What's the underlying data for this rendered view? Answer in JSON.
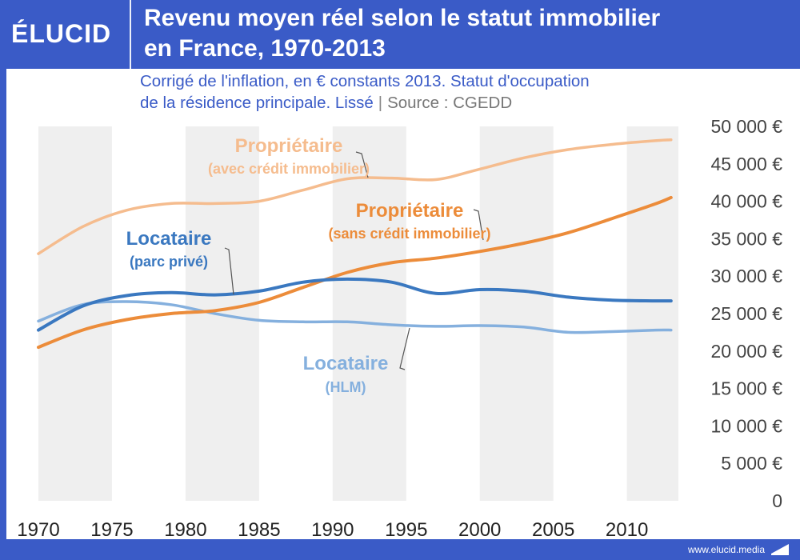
{
  "brand": {
    "logo": "ÉLUCID",
    "url": "www.elucid.media"
  },
  "header": {
    "title_line1": "Revenu moyen réel selon le statut immobilier",
    "title_line2": "en France, 1970-2013"
  },
  "subtitle": {
    "line1": "Corrigé de l'inflation, en € constants 2013. Statut d'occupation",
    "line2": "de la résidence principale. Lissé",
    "separator": "|",
    "source": "Source : CGEDD"
  },
  "colors": {
    "proprio_credit": "#f5bc8e",
    "proprio_sans_credit": "#ec8c3a",
    "locataire_prive": "#3a78c0",
    "locataire_hlm": "#85b0de",
    "band": "#efefef",
    "accent": "#3a5bc7"
  },
  "chart_data": {
    "type": "line",
    "title": "Revenu moyen réel selon le statut immobilier en France, 1970-2013",
    "xlim": [
      1970,
      2013.5
    ],
    "ylim": [
      0,
      50000
    ],
    "x": [
      1970,
      1973,
      1976,
      1979,
      1982,
      1985,
      1988,
      1991,
      1994,
      1997,
      2000,
      2003,
      2006,
      2009,
      2012,
      2013
    ],
    "x_ticks": [
      {
        "value": 1970,
        "label": "1970"
      },
      {
        "value": 1975,
        "label": "1975"
      },
      {
        "value": 1980,
        "label": "1980"
      },
      {
        "value": 1985,
        "label": "1985"
      },
      {
        "value": 1990,
        "label": "1990"
      },
      {
        "value": 1995,
        "label": "1995"
      },
      {
        "value": 2000,
        "label": "2000"
      },
      {
        "value": 2005,
        "label": "2005"
      },
      {
        "value": 2010,
        "label": "2010"
      }
    ],
    "y_ticks": [
      {
        "value": 0,
        "label": "0"
      },
      {
        "value": 5000,
        "label": "5 000 €"
      },
      {
        "value": 10000,
        "label": "10 000 €"
      },
      {
        "value": 15000,
        "label": "15 000 €"
      },
      {
        "value": 20000,
        "label": "20 000 €"
      },
      {
        "value": 25000,
        "label": "25 000 €"
      },
      {
        "value": 30000,
        "label": "30 000 €"
      },
      {
        "value": 35000,
        "label": "35 000 €"
      },
      {
        "value": 40000,
        "label": "40 000 €"
      },
      {
        "value": 45000,
        "label": "45 000 €"
      },
      {
        "value": 50000,
        "label": "50 000 €"
      }
    ],
    "series": [
      {
        "key": "proprio_credit",
        "name": "Propriétaire",
        "sub": "(avec crédit immobilier)",
        "values": [
          33000,
          36600,
          38800,
          39700,
          39700,
          40000,
          41500,
          43000,
          43100,
          42900,
          44300,
          45800,
          46900,
          47600,
          48100,
          48200
        ]
      },
      {
        "key": "proprio_sans_credit",
        "name": "Propriétaire",
        "sub": "(sans crédit immobilier)",
        "values": [
          20500,
          22800,
          24200,
          25000,
          25400,
          26500,
          28500,
          30500,
          31800,
          32400,
          33300,
          34400,
          35800,
          37700,
          39700,
          40500
        ]
      },
      {
        "key": "locataire_prive",
        "name": "Locataire",
        "sub": "(parc privé)",
        "values": [
          22800,
          26000,
          27400,
          27800,
          27500,
          28000,
          29200,
          29600,
          29200,
          27700,
          28200,
          28000,
          27200,
          26800,
          26700,
          26700
        ]
      },
      {
        "key": "locataire_hlm",
        "name": "Locataire",
        "sub": "(HLM)",
        "values": [
          24000,
          26200,
          26600,
          26200,
          25000,
          24100,
          23900,
          23900,
          23500,
          23300,
          23400,
          23200,
          22500,
          22600,
          22800,
          22800
        ]
      }
    ]
  }
}
